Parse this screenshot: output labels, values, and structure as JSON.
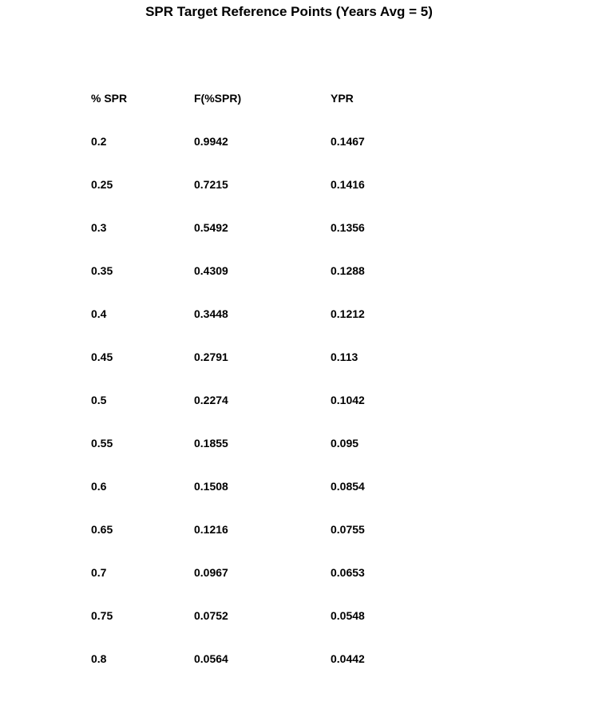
{
  "chart_data": {
    "type": "table",
    "title": "SPR Target Reference Points (Years Avg = 5)",
    "columns": [
      "% SPR",
      "F(%SPR)",
      "YPR"
    ],
    "rows": [
      [
        "0.2",
        "0.9942",
        "0.1467"
      ],
      [
        "0.25",
        "0.7215",
        "0.1416"
      ],
      [
        "0.3",
        "0.5492",
        "0.1356"
      ],
      [
        "0.35",
        "0.4309",
        "0.1288"
      ],
      [
        "0.4",
        "0.3448",
        "0.1212"
      ],
      [
        "0.45",
        "0.2791",
        "0.113"
      ],
      [
        "0.5",
        "0.2274",
        "0.1042"
      ],
      [
        "0.55",
        "0.1855",
        "0.095"
      ],
      [
        "0.6",
        "0.1508",
        "0.0854"
      ],
      [
        "0.65",
        "0.1216",
        "0.0755"
      ],
      [
        "0.7",
        "0.0967",
        "0.0653"
      ],
      [
        "0.75",
        "0.0752",
        "0.0548"
      ],
      [
        "0.8",
        "0.0564",
        "0.0442"
      ]
    ]
  }
}
